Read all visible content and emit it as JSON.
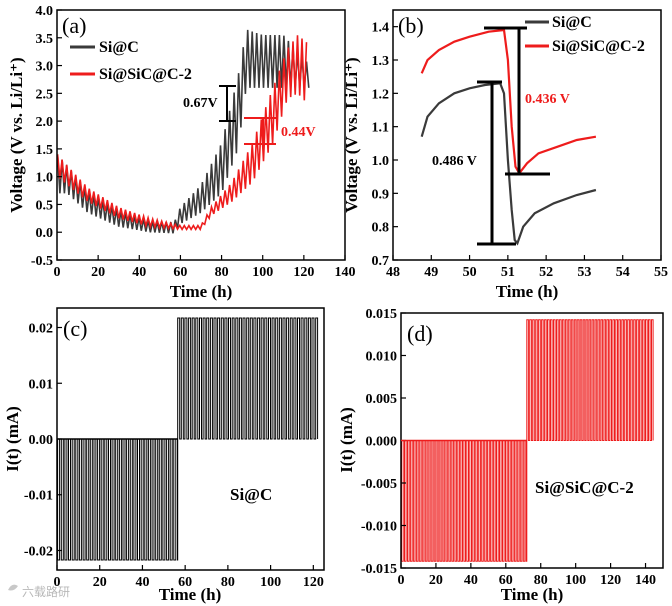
{
  "colors": {
    "black_series": "#3a3a3a",
    "red_series": "#ee1c1c",
    "axis": "#000000"
  },
  "watermark": "六载路研",
  "chart_data": [
    {
      "panel": "(a)",
      "type": "line",
      "xlabel": "Time (h)",
      "ylabel": "Voltage (V vs. Li/Li⁺)",
      "xlim": [
        0,
        140
      ],
      "ylim": [
        -0.5,
        4.0
      ],
      "xticks": [
        0,
        20,
        40,
        60,
        80,
        100,
        120,
        140
      ],
      "yticks": [
        -0.5,
        0.0,
        0.5,
        1.0,
        1.5,
        2.0,
        2.5,
        3.0,
        3.5,
        4.0
      ],
      "legend_position": "top-left",
      "series": [
        {
          "name": "Si@C",
          "color": "#3a3a3a",
          "period": 2.2,
          "x_end": 123,
          "lower": [
            [
              0.3,
              0.7
            ],
            [
              5,
              0.7
            ],
            [
              15,
              0.35
            ],
            [
              30,
              0.1
            ],
            [
              45,
              0.0
            ],
            [
              57,
              -0.02
            ],
            [
              60,
              0.15
            ],
            [
              70,
              0.35
            ],
            [
              80,
              0.7
            ],
            [
              88,
              1.5
            ],
            [
              92,
              2.6
            ],
            [
              100,
              2.6
            ],
            [
              110,
              2.6
            ],
            [
              123,
              2.6
            ]
          ],
          "upper": [
            [
              0.3,
              1.4
            ],
            [
              5,
              1.2
            ],
            [
              15,
              0.75
            ],
            [
              30,
              0.4
            ],
            [
              45,
              0.2
            ],
            [
              57,
              0.18
            ],
            [
              60,
              0.45
            ],
            [
              70,
              0.85
            ],
            [
              80,
              1.6
            ],
            [
              88,
              2.8
            ],
            [
              92,
              3.65
            ],
            [
              100,
              3.55
            ],
            [
              110,
              3.55
            ],
            [
              123,
              3.0
            ]
          ]
        },
        {
          "name": "Si@SiC@C-2",
          "color": "#ee1c1c",
          "period": 2.2,
          "x_end": 122,
          "lower": [
            [
              0.3,
              1.0
            ],
            [
              5,
              0.85
            ],
            [
              15,
              0.55
            ],
            [
              30,
              0.25
            ],
            [
              45,
              0.1
            ],
            [
              60,
              0.05
            ],
            [
              70,
              0.05
            ],
            [
              75,
              0.3
            ],
            [
              85,
              0.55
            ],
            [
              95,
              0.9
            ],
            [
              105,
              1.6
            ],
            [
              112,
              2.4
            ],
            [
              117,
              2.5
            ],
            [
              122,
              2.3
            ]
          ],
          "upper": [
            [
              0.3,
              1.4
            ],
            [
              5,
              1.2
            ],
            [
              15,
              0.8
            ],
            [
              30,
              0.45
            ],
            [
              45,
              0.25
            ],
            [
              60,
              0.12
            ],
            [
              70,
              0.12
            ],
            [
              75,
              0.45
            ],
            [
              85,
              0.9
            ],
            [
              95,
              1.6
            ],
            [
              105,
              2.6
            ],
            [
              112,
              3.3
            ],
            [
              117,
              3.55
            ],
            [
              122,
              3.4
            ]
          ]
        }
      ],
      "annotations": [
        {
          "text": "0.67V",
          "color": "#000000"
        },
        {
          "text": "0.44V",
          "color": "#ee1c1c"
        }
      ]
    },
    {
      "panel": "(b)",
      "type": "line",
      "xlabel": "Time (h)",
      "ylabel": "Voltage (V vs. Li/Li⁺)",
      "xlim": [
        48,
        55
      ],
      "ylim": [
        0.7,
        1.45
      ],
      "xticks": [
        48,
        49,
        50,
        51,
        52,
        53,
        54,
        55
      ],
      "yticks": [
        0.7,
        0.8,
        0.9,
        1.0,
        1.1,
        1.2,
        1.3,
        1.4
      ],
      "legend_position": "top-right",
      "series": [
        {
          "name": "Si@C",
          "color": "#3a3a3a",
          "points": [
            [
              48.75,
              1.07
            ],
            [
              48.9,
              1.13
            ],
            [
              49.2,
              1.17
            ],
            [
              49.6,
              1.2
            ],
            [
              50,
              1.215
            ],
            [
              50.4,
              1.225
            ],
            [
              50.8,
              1.23
            ],
            [
              50.9,
              1.2
            ],
            [
              51.0,
              1.0
            ],
            [
              51.1,
              0.85
            ],
            [
              51.18,
              0.76
            ],
            [
              51.25,
              0.75
            ],
            [
              51.4,
              0.8
            ],
            [
              51.7,
              0.84
            ],
            [
              52.2,
              0.87
            ],
            [
              52.8,
              0.895
            ],
            [
              53.3,
              0.91
            ]
          ]
        },
        {
          "name": "Si@SiC@C-2",
          "color": "#ee1c1c",
          "points": [
            [
              48.75,
              1.26
            ],
            [
              48.9,
              1.3
            ],
            [
              49.2,
              1.33
            ],
            [
              49.6,
              1.355
            ],
            [
              50,
              1.37
            ],
            [
              50.5,
              1.385
            ],
            [
              50.9,
              1.39
            ],
            [
              51.0,
              1.3
            ],
            [
              51.1,
              1.1
            ],
            [
              51.2,
              0.98
            ],
            [
              51.3,
              0.96
            ],
            [
              51.5,
              0.99
            ],
            [
              51.8,
              1.02
            ],
            [
              52.3,
              1.04
            ],
            [
              52.8,
              1.06
            ],
            [
              53.3,
              1.07
            ]
          ]
        }
      ],
      "annotations": [
        {
          "text": "0.436 V",
          "color": "#ee1c1c"
        },
        {
          "text": "0.486 V",
          "color": "#000000"
        }
      ]
    },
    {
      "panel": "(c)",
      "type": "line",
      "xlabel": "Time (h)",
      "ylabel": "I(t) (mA)",
      "xlim": [
        0,
        125
      ],
      "ylim": [
        -0.0235,
        0.0235
      ],
      "xticks": [
        0,
        20,
        40,
        60,
        80,
        100,
        120
      ],
      "yticks": [
        -0.02,
        -0.01,
        0.0,
        0.01,
        0.02
      ],
      "ytick_labels": [
        "-0.02",
        "-0.01",
        "0.00",
        "0.01",
        "0.02"
      ],
      "series": [
        {
          "name": "Si@C",
          "color": "#000000",
          "low_amp": -0.0217,
          "high_amp": 0.0217,
          "switch_x": 56.5,
          "end_x": 122,
          "pulse_period": 1.7
        }
      ],
      "panel_text": "Si@C"
    },
    {
      "panel": "(d)",
      "type": "line",
      "xlabel": "Time (h)",
      "ylabel": "I(t) (mA)",
      "xlim": [
        0,
        150
      ],
      "ylim": [
        -0.015,
        0.015
      ],
      "xticks": [
        0,
        20,
        40,
        60,
        80,
        100,
        120,
        140
      ],
      "yticks": [
        -0.015,
        -0.01,
        -0.005,
        0.0,
        0.005,
        0.01,
        0.015
      ],
      "ytick_labels": [
        "-0.015",
        "-0.010",
        "-0.005",
        "0.000",
        "0.005",
        "0.010",
        "0.015"
      ],
      "series": [
        {
          "name": "Si@SiC@C-2",
          "color": "#ee1c1c",
          "low_amp": -0.0142,
          "high_amp": 0.0142,
          "switch_x": 72,
          "end_x": 145,
          "pulse_period": 1.7
        }
      ],
      "panel_text": "Si@SiC@C-2"
    }
  ]
}
